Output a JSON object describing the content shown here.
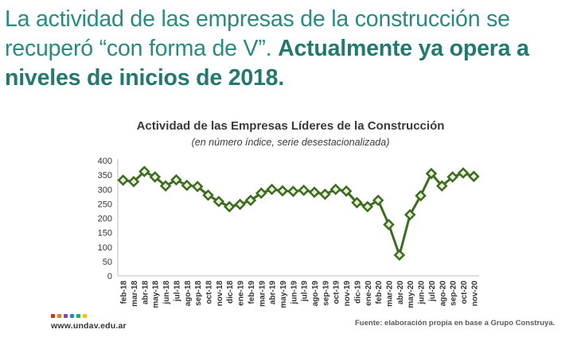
{
  "headline": {
    "part1": "La actividad de las empresas de la construcción se recuperó “con forma de V”. ",
    "part2": "Actualmente ya opera a niveles de inicios de 2018."
  },
  "footer": {
    "url": "www.undav.edu.ar",
    "logo_colors": [
      "#c0392b",
      "#e67e22",
      "#8e44ad",
      "#2e86c1",
      "#27ae60",
      "#f1c40f"
    ]
  },
  "source_note": "Fuente: elaboración propia en base a Grupo Construya.",
  "colors": {
    "headline": "#2a8a80",
    "line": "#3d6b1f",
    "marker_fill": "#e8efd8"
  },
  "chart_data": {
    "type": "line",
    "title": "Actividad de las Empresas Líderes de la Construcción",
    "subtitle": "(en número índice, serie desestacionalizada)",
    "xlabel": "",
    "ylabel": "",
    "ylim": [
      0,
      400
    ],
    "yticks": [
      0,
      50,
      100,
      150,
      200,
      250,
      300,
      350,
      400
    ],
    "grid": false,
    "categories": [
      "feb-18",
      "mar-18",
      "abr-18",
      "may-18",
      "jun-18",
      "jul-18",
      "ago-18",
      "sep-18",
      "oct-18",
      "nov-18",
      "dic-18",
      "ene-19",
      "feb-19",
      "mar-19",
      "abr-19",
      "may-19",
      "jun-19",
      "jul-19",
      "ago-19",
      "sep-19",
      "oct-19",
      "nov-19",
      "dic-19",
      "ene-20",
      "feb-20",
      "mar-20",
      "abr-20",
      "may-20",
      "jun-20",
      "jul-20",
      "ago-20",
      "sep-20",
      "oct-20",
      "nov-20"
    ],
    "values": [
      332,
      327,
      362,
      343,
      312,
      333,
      314,
      310,
      280,
      258,
      240,
      248,
      262,
      287,
      300,
      295,
      293,
      297,
      290,
      283,
      300,
      294,
      254,
      240,
      262,
      178,
      72,
      212,
      278,
      355,
      312,
      343,
      357,
      345
    ]
  }
}
